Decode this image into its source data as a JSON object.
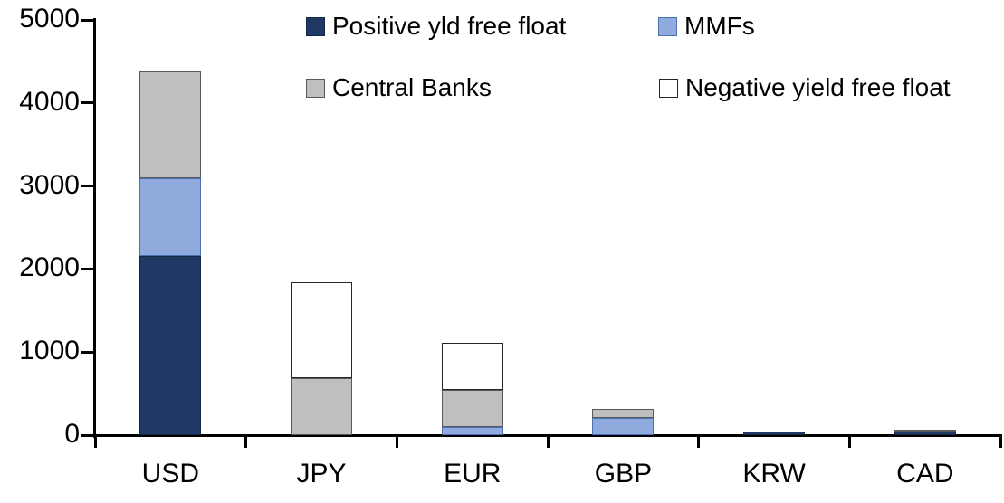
{
  "chart_data": {
    "type": "bar",
    "stacked": true,
    "title": "",
    "xlabel": "",
    "ylabel": "",
    "categories": [
      "USD",
      "JPY",
      "EUR",
      "GBP",
      "KRW",
      "CAD"
    ],
    "series": [
      {
        "name": "Positive yld free float",
        "color": "#1F3864",
        "border": "#142747",
        "values": [
          2160,
          0,
          0,
          0,
          45,
          40
        ]
      },
      {
        "name": "MMFs",
        "color": "#8FAADC",
        "border": "#4a72b2",
        "values": [
          930,
          0,
          100,
          210,
          0,
          0
        ]
      },
      {
        "name": "Central Banks",
        "color": "#BFBFBF",
        "border": "#595959",
        "values": [
          1290,
          690,
          440,
          110,
          0,
          25
        ]
      },
      {
        "name": "Negative yield free float",
        "color": "#FFFFFF",
        "border": "#262626",
        "values": [
          0,
          1150,
          570,
          0,
          0,
          0
        ]
      }
    ],
    "ylim": [
      0,
      5000
    ],
    "y_ticks": [
      0,
      1000,
      2000,
      3000,
      4000,
      5000
    ],
    "grid": false,
    "legend_position": "top-right-two-rows",
    "axis_color": "#000000",
    "background_color": "#FFFFFF"
  }
}
